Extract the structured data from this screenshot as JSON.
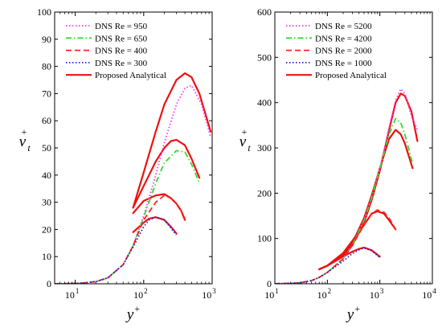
{
  "chart_data": [
    {
      "type": "line",
      "xscale": "log",
      "xlim": [
        5,
        1000
      ],
      "ylim": [
        0,
        100
      ],
      "xticks": [
        {
          "value": 10,
          "base": "10",
          "exp": "1"
        },
        {
          "value": 100,
          "base": "10",
          "exp": "2"
        },
        {
          "value": 1000,
          "base": "10",
          "exp": "3"
        }
      ],
      "yticks": [
        0,
        10,
        20,
        30,
        40,
        50,
        60,
        70,
        80,
        90,
        100
      ],
      "xlabel": {
        "main": "y",
        "sup": "+"
      },
      "ylabel": {
        "main": "ν",
        "sup": "+",
        "sub": "t"
      },
      "grid": false,
      "legend_position": "top-left",
      "series": [
        {
          "name": "DNS Re = 950",
          "color": "#ff33ff",
          "dash": "dot",
          "x": [
            5,
            8,
            12,
            20,
            30,
            50,
            70,
            100,
            150,
            200,
            300,
            400,
            500,
            700,
            950
          ],
          "y": [
            0.01,
            0.05,
            0.2,
            0.8,
            2.2,
            7,
            14,
            25,
            40,
            52,
            66,
            72,
            73,
            66,
            54
          ]
        },
        {
          "name": "DNS Re = 650",
          "color": "#33dd33",
          "dash": "dashdot",
          "x": [
            5,
            8,
            12,
            20,
            30,
            50,
            70,
            100,
            150,
            200,
            300,
            400,
            500,
            650
          ],
          "y": [
            0.01,
            0.05,
            0.2,
            0.8,
            2.2,
            7,
            14,
            24.5,
            37,
            44.5,
            49,
            48.5,
            44,
            37
          ]
        },
        {
          "name": "DNS Re = 400",
          "color": "#ff2222",
          "dash": "dash",
          "x": [
            5,
            8,
            12,
            20,
            30,
            50,
            70,
            100,
            150,
            200,
            250,
            300,
            350,
            400
          ],
          "y": [
            0.01,
            0.05,
            0.2,
            0.8,
            2.2,
            7,
            14,
            23.5,
            30,
            32.5,
            31.5,
            29.5,
            27,
            24
          ]
        },
        {
          "name": "DNS Re = 300",
          "color": "#2222dd",
          "dash": "dot",
          "x": [
            5,
            8,
            12,
            20,
            30,
            50,
            70,
            100,
            120,
            150,
            200,
            250,
            300
          ],
          "y": [
            0.01,
            0.05,
            0.2,
            0.8,
            2.2,
            7,
            13.5,
            21,
            23.5,
            24.5,
            23.5,
            20.5,
            18
          ]
        }
      ],
      "analytical": {
        "name": "Proposed Analytical",
        "color": "#ee1111",
        "curves": [
          {
            "x": [
              70,
              100,
              150,
              200,
              300,
              400,
              500,
              650,
              950
            ],
            "y": [
              28,
              41,
              56,
              66,
              75,
              77.5,
              76,
              70,
              56
            ]
          },
          {
            "x": [
              70,
              100,
              150,
              200,
              250,
              300,
              400,
              500,
              650
            ],
            "y": [
              28,
              36,
              45,
              50,
              52.5,
              53,
              51,
              46,
              39
            ]
          },
          {
            "x": [
              70,
              100,
              150,
              200,
              250,
              300,
              350,
              400
            ],
            "y": [
              26,
              30.5,
              32.5,
              33,
              31.5,
              29.5,
              27,
              23.5
            ]
          },
          {
            "x": [
              70,
              100,
              120,
              150,
              200,
              250,
              300
            ],
            "y": [
              19,
              22.5,
              24,
              24.5,
              23.5,
              21,
              18.5
            ]
          }
        ]
      }
    },
    {
      "type": "line",
      "xscale": "log",
      "xlim": [
        10,
        10000
      ],
      "ylim": [
        0,
        600
      ],
      "xticks": [
        {
          "value": 10,
          "base": "10",
          "exp": "1"
        },
        {
          "value": 100,
          "base": "10",
          "exp": "2"
        },
        {
          "value": 1000,
          "base": "10",
          "exp": "3"
        },
        {
          "value": 10000,
          "base": "10",
          "exp": "4"
        }
      ],
      "yticks": [
        0,
        100,
        200,
        300,
        400,
        500,
        600
      ],
      "xlabel": {
        "main": "y",
        "sup": "+"
      },
      "ylabel": {
        "main": "ν",
        "sup": "+",
        "sub": "t"
      },
      "grid": false,
      "legend_position": "top-left",
      "series": [
        {
          "name": "DNS Re = 5200",
          "color": "#ff33ff",
          "dash": "dot",
          "x": [
            10,
            20,
            30,
            50,
            70,
            100,
            200,
            300,
            500,
            700,
            1000,
            1500,
            2000,
            2500,
            3000,
            4000,
            5200
          ],
          "y": [
            0.2,
            0.8,
            2.2,
            7,
            14,
            25,
            55,
            85,
            140,
            190,
            255,
            345,
            405,
            430,
            420,
            370,
            340
          ]
        },
        {
          "name": "DNS Re = 4200",
          "color": "#33dd33",
          "dash": "dashdot",
          "x": [
            10,
            20,
            30,
            50,
            70,
            100,
            200,
            300,
            500,
            700,
            1000,
            1500,
            2000,
            2500,
            3000,
            4200
          ],
          "y": [
            0.2,
            0.8,
            2.2,
            7,
            14,
            25,
            55,
            85,
            140,
            190,
            255,
            330,
            365,
            355,
            330,
            265
          ]
        },
        {
          "name": "DNS Re = 2000",
          "color": "#ff2222",
          "dash": "dash",
          "x": [
            10,
            20,
            30,
            50,
            70,
            100,
            200,
            300,
            500,
            700,
            900,
            1200,
            1500,
            2000
          ],
          "y": [
            0.2,
            0.8,
            2.2,
            7,
            14,
            25,
            55,
            85,
            130,
            155,
            163,
            158,
            145,
            120
          ]
        },
        {
          "name": "DNS Re = 1000",
          "color": "#2222dd",
          "dash": "dot",
          "x": [
            10,
            20,
            30,
            50,
            70,
            100,
            200,
            300,
            400,
            500,
            700,
            1000
          ],
          "y": [
            0.2,
            0.8,
            2.2,
            7,
            14,
            25,
            50,
            67,
            75,
            79,
            73,
            58
          ]
        }
      ],
      "analytical": {
        "name": "Proposed Analytical",
        "color": "#ee1111",
        "curves": [
          {
            "x": [
              70,
              100,
              200,
              300,
              500,
              700,
              1000,
              1500,
              2000,
              2500,
              3000,
              4000,
              5200
            ],
            "y": [
              32,
              40,
              62,
              85,
              135,
              185,
              250,
              340,
              400,
              420,
              415,
              380,
              315
            ]
          },
          {
            "x": [
              70,
              100,
              200,
              300,
              500,
              700,
              1000,
              1500,
              2000,
              2500,
              3000,
              4200
            ],
            "y": [
              32,
              40,
              65,
              90,
              145,
              195,
              255,
              320,
              340,
              330,
              310,
              255
            ]
          },
          {
            "x": [
              70,
              100,
              200,
              300,
              500,
              700,
              900,
              1200,
              1500,
              2000
            ],
            "y": [
              32,
              40,
              68,
              95,
              130,
              155,
              160,
              155,
              140,
              120
            ]
          },
          {
            "x": [
              70,
              100,
              200,
              300,
              400,
              500,
              700,
              1000
            ],
            "y": [
              32,
              40,
              60,
              71,
              77,
              80,
              74,
              60
            ]
          }
        ]
      }
    }
  ]
}
